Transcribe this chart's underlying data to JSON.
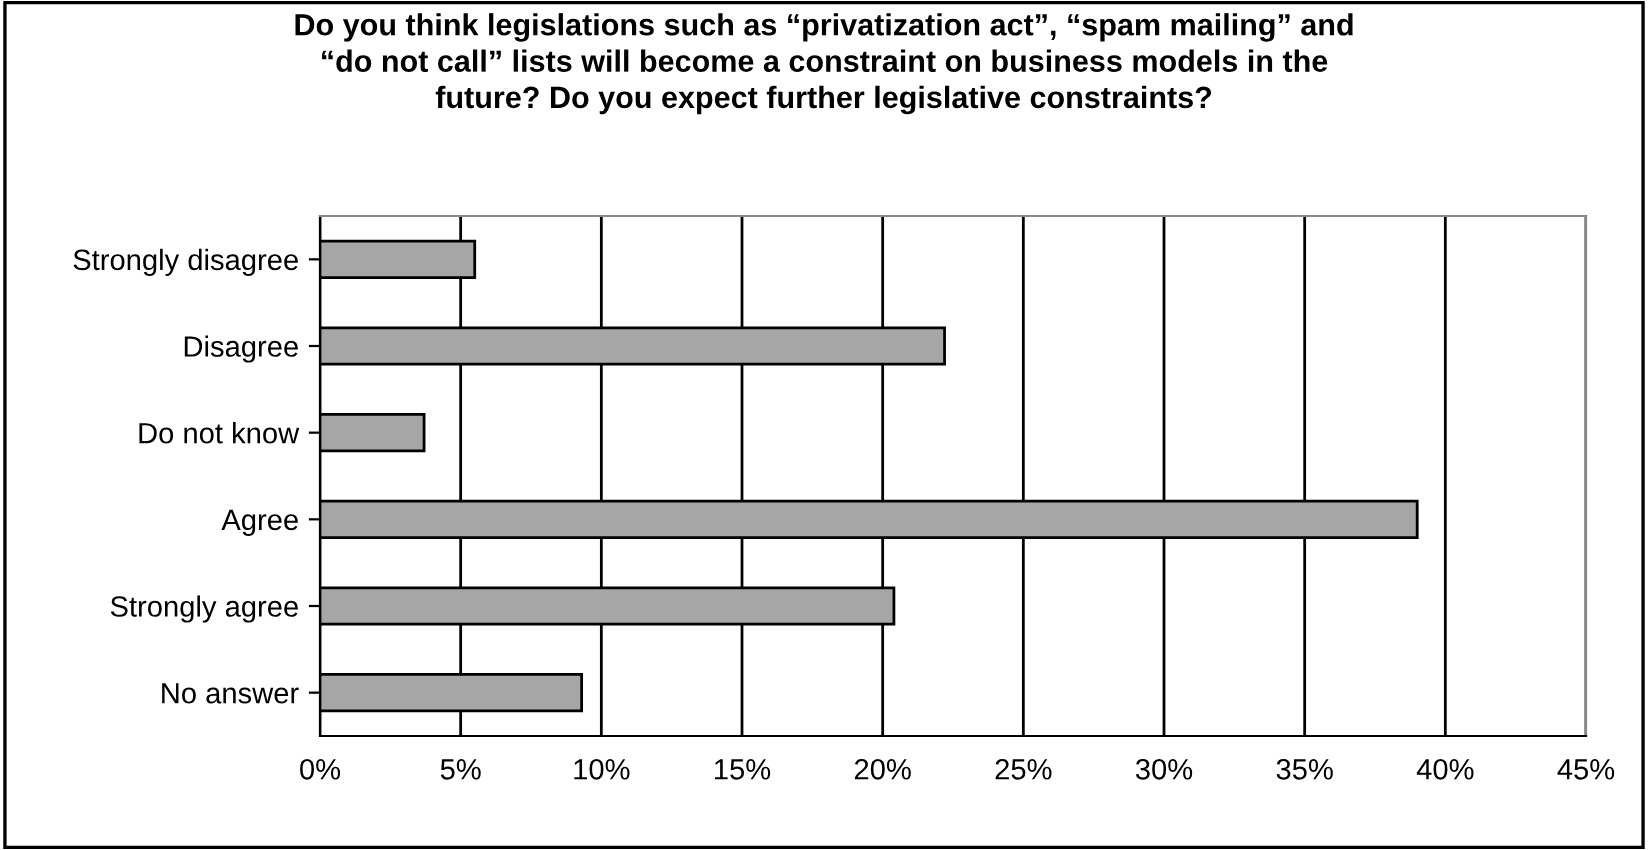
{
  "chart_data": {
    "type": "bar",
    "orientation": "horizontal",
    "title": "Do you think legislations such as “privatization act”, “spam mailing” and\n“do not call” lists will become a constraint on business models in the\nfuture? Do you expect further legislative constraints?",
    "categories": [
      "Strongly disagree",
      "Disagree",
      "Do not know",
      "Agree",
      "Strongly agree",
      "No answer"
    ],
    "values": [
      5.5,
      22.2,
      3.7,
      39.0,
      20.4,
      9.3
    ],
    "color": "#a6a6a6",
    "xlim": [
      0,
      45
    ],
    "xticks": [
      {
        "value": 0,
        "label": "0%"
      },
      {
        "value": 5,
        "label": "5%"
      },
      {
        "value": 10,
        "label": "10%"
      },
      {
        "value": 15,
        "label": "15%"
      },
      {
        "value": 20,
        "label": "20%"
      },
      {
        "value": 25,
        "label": "25%"
      },
      {
        "value": 30,
        "label": "30%"
      },
      {
        "value": 35,
        "label": "35%"
      },
      {
        "value": 40,
        "label": "40%"
      },
      {
        "value": 45,
        "label": "45%"
      }
    ],
    "grid": "x",
    "legend": false
  }
}
